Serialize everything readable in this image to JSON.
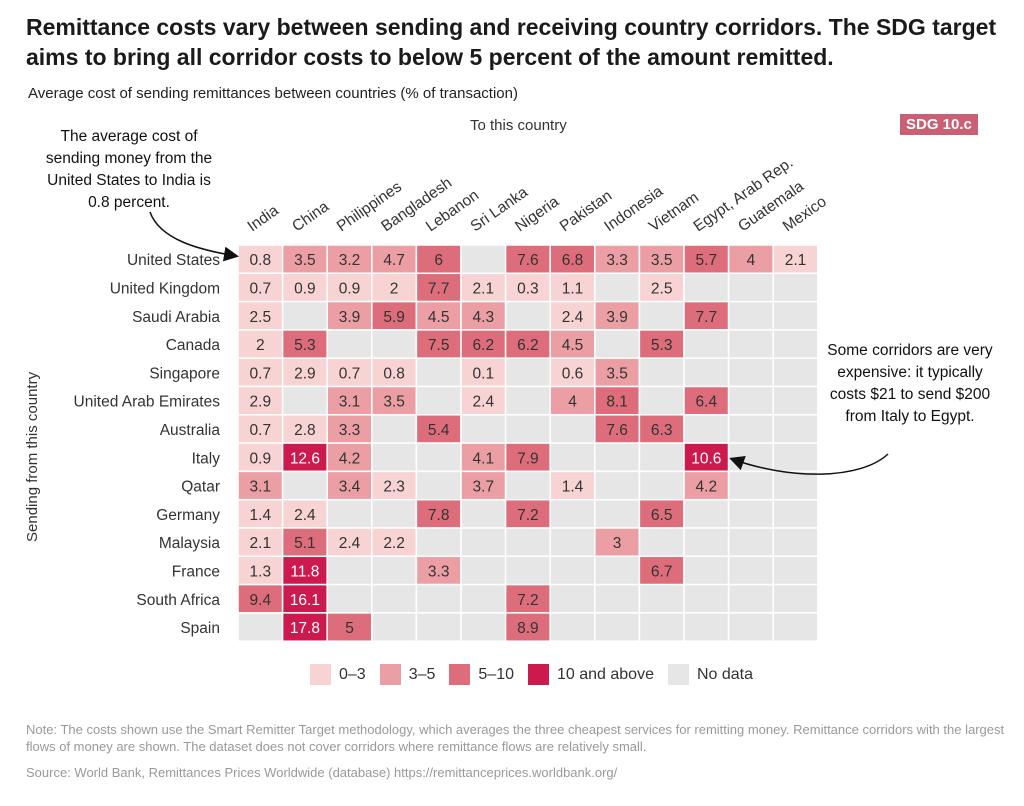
{
  "title": "Remittance costs vary between sending and receiving country corridors. The SDG target aims to bring all corridor costs to below 5 percent of the amount remitted.",
  "subtitle": "Average cost of sending remittances between countries (% of transaction)",
  "badge": "SDG 10.c",
  "annotations": {
    "left": "The average cost of sending money from the United States to India is 0.8 percent.",
    "right": "Some corridors are very expensive: it typically costs $21 to send $200 from Italy to Egypt."
  },
  "legend": [
    {
      "label": "0–3",
      "color": "#f8d3d4"
    },
    {
      "label": "3–5",
      "color": "#eb9fa5"
    },
    {
      "label": "5–10",
      "color": "#dd6d7b"
    },
    {
      "label": "10 and above",
      "color": "#cc1a4e"
    },
    {
      "label": "No data",
      "color": "#e6e6e6"
    }
  ],
  "note": "Note: The costs shown use the Smart Remitter Target methodology, which averages the three cheapest services for remitting money. Remittance corridors with the largest flows of money are shown. The dataset does not cover corridors where remittance flows are relatively small.",
  "source": "Source: World Bank, Remittances Prices Worldwide (database) https://remittanceprices.worldbank.org/",
  "chart_data": {
    "type": "heatmap",
    "xlabel": "To this country",
    "ylabel": "Sending from this country",
    "x": [
      "India",
      "China",
      "Philippines",
      "Bangladesh",
      "Lebanon",
      "Sri Lanka",
      "Nigeria",
      "Pakistan",
      "Indonesia",
      "Vietnam",
      "Egypt, Arab Rep.",
      "Guatemala",
      "Mexico"
    ],
    "y": [
      "United States",
      "United Kingdom",
      "Saudi Arabia",
      "Canada",
      "Singapore",
      "United Arab Emirates",
      "Australia",
      "Italy",
      "Qatar",
      "Germany",
      "Malaysia",
      "France",
      "South Africa",
      "Spain"
    ],
    "values": [
      [
        0.8,
        3.5,
        3.2,
        4.7,
        6,
        null,
        7.6,
        6.8,
        3.3,
        3.5,
        5.7,
        4,
        2.1
      ],
      [
        0.7,
        0.9,
        0.9,
        2,
        7.7,
        2.1,
        0.3,
        1.1,
        null,
        2.5,
        null,
        null,
        null
      ],
      [
        2.5,
        null,
        3.9,
        5.9,
        4.5,
        4.3,
        null,
        2.4,
        3.9,
        null,
        7.7,
        null,
        null
      ],
      [
        2,
        5.3,
        null,
        null,
        7.5,
        6.2,
        6.2,
        4.5,
        null,
        5.3,
        null,
        null,
        null
      ],
      [
        0.7,
        2.9,
        0.7,
        0.8,
        null,
        0.1,
        null,
        0.6,
        3.5,
        null,
        null,
        null,
        null
      ],
      [
        2.9,
        null,
        3.1,
        3.5,
        null,
        2.4,
        null,
        4,
        8.1,
        null,
        6.4,
        null,
        null
      ],
      [
        0.7,
        2.8,
        3.3,
        null,
        5.4,
        null,
        null,
        null,
        7.6,
        6.3,
        null,
        null,
        null
      ],
      [
        0.9,
        12.6,
        4.2,
        null,
        null,
        4.1,
        7.9,
        null,
        null,
        null,
        10.6,
        null,
        null
      ],
      [
        3.1,
        null,
        3.4,
        2.3,
        null,
        3.7,
        null,
        1.4,
        null,
        null,
        4.2,
        null,
        null
      ],
      [
        1.4,
        2.4,
        null,
        null,
        7.8,
        null,
        7.2,
        null,
        null,
        6.5,
        null,
        null,
        null
      ],
      [
        2.1,
        5.1,
        2.4,
        2.2,
        null,
        null,
        null,
        null,
        3,
        null,
        null,
        null,
        null
      ],
      [
        1.3,
        11.8,
        null,
        null,
        3.3,
        null,
        null,
        null,
        null,
        6.7,
        null,
        null,
        null
      ],
      [
        9.4,
        16.1,
        null,
        null,
        null,
        null,
        7.2,
        null,
        null,
        null,
        null,
        null,
        null
      ],
      [
        null,
        17.8,
        5,
        null,
        null,
        null,
        8.9,
        null,
        null,
        null,
        null,
        null,
        null
      ]
    ]
  }
}
